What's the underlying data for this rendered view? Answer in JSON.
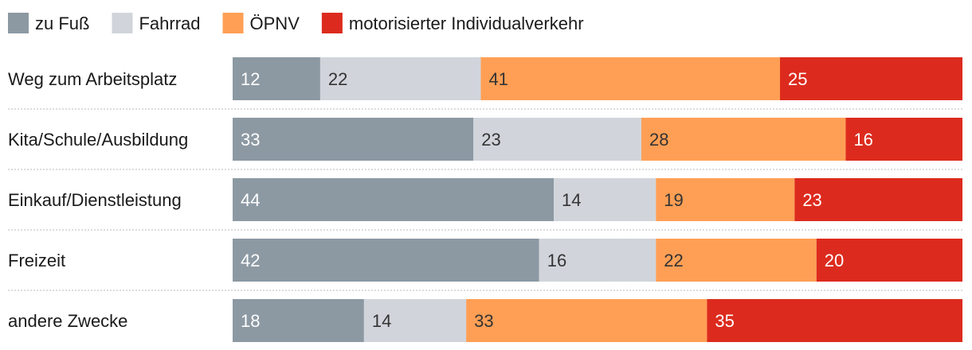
{
  "chart_data": {
    "type": "bar",
    "orientation": "horizontal",
    "stacked": true,
    "legend_position": "top-left",
    "grid": false,
    "categories": [
      "Weg zum Arbeitsplatz",
      "Kita/Schule/Ausbildung",
      "Einkauf/Dienstleistung",
      "Freizeit",
      "andere Zwecke"
    ],
    "series": [
      {
        "name": "zu Fuß",
        "color": "#8c99a3",
        "label_color": "#ffffff",
        "values": [
          12,
          33,
          44,
          42,
          18
        ]
      },
      {
        "name": "Fahrrad",
        "color": "#d1d5db",
        "label_color": "#333333",
        "values": [
          22,
          23,
          14,
          16,
          14
        ]
      },
      {
        "name": "ÖPNV",
        "color": "#ff9f55",
        "label_color": "#333333",
        "values": [
          41,
          28,
          19,
          22,
          33
        ]
      },
      {
        "name": "motorisierter Individualverkehr",
        "color": "#dc2b1e",
        "label_color": "#ffffff",
        "values": [
          25,
          16,
          23,
          20,
          35
        ]
      }
    ]
  }
}
